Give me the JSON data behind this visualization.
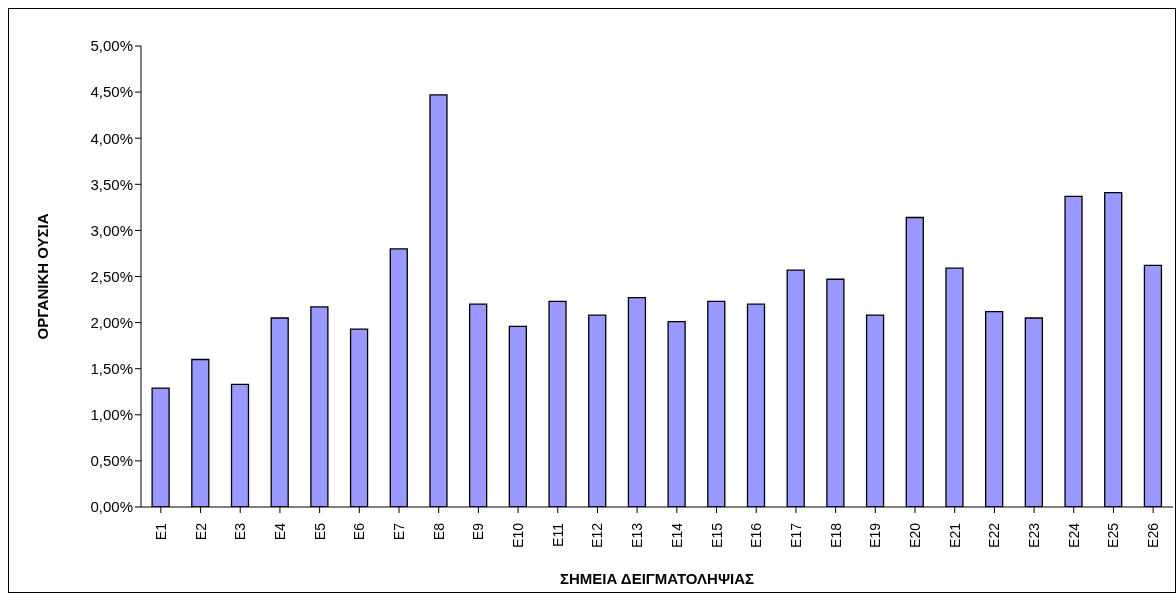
{
  "chart_data": {
    "type": "bar",
    "xlabel": "ΣΗΜΕΙΑ ΔΕΙΓΜΑΤΟΛΗΨΙΑΣ",
    "ylabel": "ΟΡΓΑΝΙΚΗ ΟΥΣΙΑ",
    "categories": [
      "E1",
      "E2",
      "E3",
      "E4",
      "E5",
      "E6",
      "E7",
      "E8",
      "E9",
      "E10",
      "E11",
      "E12",
      "E13",
      "E14",
      "E15",
      "E16",
      "E17",
      "E18",
      "E19",
      "E20",
      "E21",
      "E22",
      "E23",
      "E24",
      "E25",
      "E26"
    ],
    "values": [
      1.29,
      1.6,
      1.33,
      2.05,
      2.17,
      1.93,
      2.8,
      4.47,
      2.2,
      1.96,
      2.23,
      2.08,
      2.27,
      2.01,
      2.23,
      2.2,
      2.57,
      2.47,
      2.08,
      3.14,
      2.59,
      2.12,
      2.05,
      3.37,
      3.41,
      2.62
    ],
    "color": "#9999ff",
    "ylim": [
      0,
      5
    ],
    "yticks": [
      {
        "value": 0,
        "label": "0,00%"
      },
      {
        "value": 0.5,
        "label": "0,50%"
      },
      {
        "value": 1,
        "label": "1,00%"
      },
      {
        "value": 1.5,
        "label": "1,50%"
      },
      {
        "value": 2,
        "label": "2,00%"
      },
      {
        "value": 2.5,
        "label": "2,50%"
      },
      {
        "value": 3,
        "label": "3,00%"
      },
      {
        "value": 3.5,
        "label": "3,50%"
      },
      {
        "value": 4,
        "label": "4,00%"
      },
      {
        "value": 4.5,
        "label": "4,50%"
      },
      {
        "value": 5,
        "label": "5,00%"
      }
    ],
    "grid": false,
    "legend": false
  }
}
